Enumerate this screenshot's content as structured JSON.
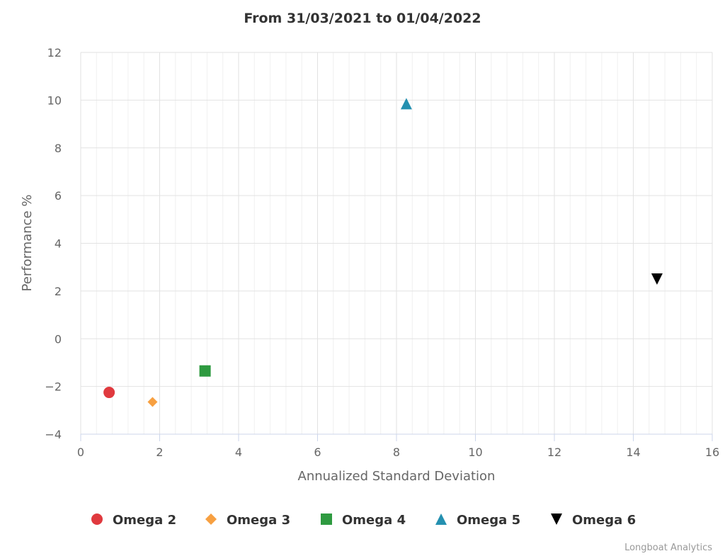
{
  "chart_data": {
    "type": "scatter",
    "title": "From 31/03/2021 to 01/04/2022",
    "xlabel": "Annualized Standard Deviation",
    "ylabel": "Performance %",
    "xlim": [
      0,
      16
    ],
    "ylim": [
      -4,
      12
    ],
    "x_ticks": [
      0,
      2,
      4,
      6,
      8,
      10,
      12,
      14,
      16
    ],
    "y_ticks": [
      -4,
      -2,
      0,
      2,
      4,
      6,
      8,
      10,
      12
    ],
    "x_minor_step": 0.4,
    "grid": true,
    "legend_position": "bottom",
    "series": [
      {
        "name": "Omega 2",
        "x": 0.72,
        "y": -2.25,
        "marker": "circle",
        "color": "#e0393e"
      },
      {
        "name": "Omega 3",
        "x": 1.82,
        "y": -2.65,
        "marker": "diamond",
        "color": "#f7a041"
      },
      {
        "name": "Omega 4",
        "x": 3.15,
        "y": -1.35,
        "marker": "square",
        "color": "#2e9a40"
      },
      {
        "name": "Omega 5",
        "x": 8.25,
        "y": 9.85,
        "marker": "triangle",
        "color": "#2490b0"
      },
      {
        "name": "Omega 6",
        "x": 14.6,
        "y": 2.5,
        "marker": "triangle-down",
        "color": "#000000"
      }
    ]
  },
  "credits": "Longboat Analytics"
}
